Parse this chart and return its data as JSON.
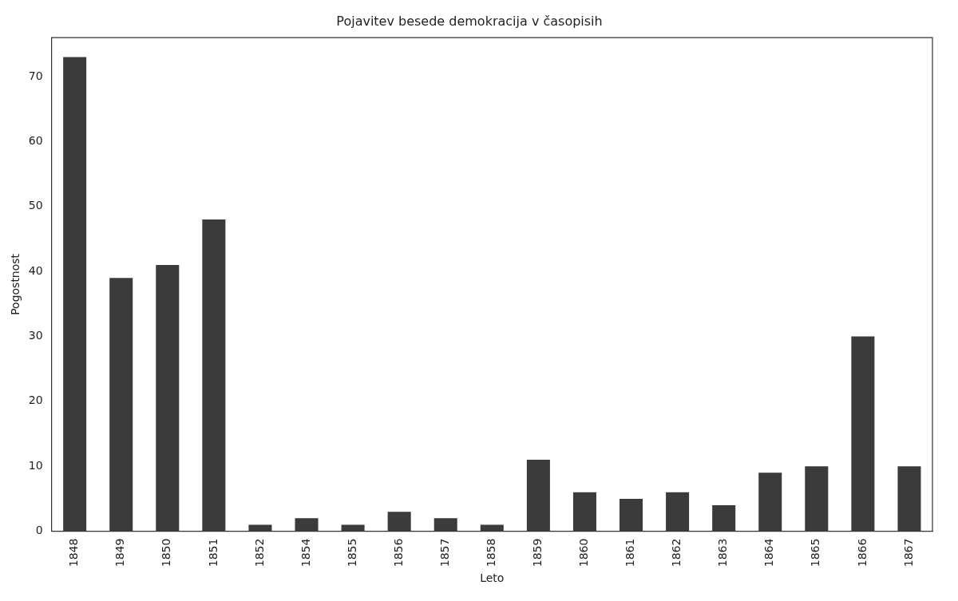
{
  "chart_data": {
    "type": "bar",
    "title": "Pojavitev besede demokracija v časopisih",
    "xlabel": "Leto",
    "ylabel": "Pogostnost",
    "categories": [
      "1848",
      "1849",
      "1850",
      "1851",
      "1852",
      "1854",
      "1855",
      "1856",
      "1857",
      "1858",
      "1859",
      "1860",
      "1861",
      "1862",
      "1863",
      "1864",
      "1865",
      "1866",
      "1867"
    ],
    "values": [
      73,
      39,
      41,
      48,
      1,
      2,
      1,
      3,
      2,
      1,
      11,
      6,
      5,
      6,
      4,
      9,
      10,
      30,
      10
    ],
    "color": "#3b3b3b",
    "ylim": [
      0,
      76
    ],
    "yticks": [
      0,
      10,
      20,
      30,
      40,
      50,
      60,
      70
    ],
    "grid": false,
    "legend": false
  }
}
